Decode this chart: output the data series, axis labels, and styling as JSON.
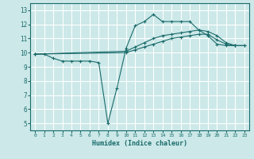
{
  "title": "",
  "xlabel": "Humidex (Indice chaleur)",
  "ylabel": "",
  "xlim": [
    -0.5,
    23.5
  ],
  "ylim": [
    4.5,
    13.5
  ],
  "xticks": [
    0,
    1,
    2,
    3,
    4,
    5,
    6,
    7,
    8,
    9,
    10,
    11,
    12,
    13,
    14,
    15,
    16,
    17,
    18,
    19,
    20,
    21,
    22,
    23
  ],
  "yticks": [
    5,
    6,
    7,
    8,
    9,
    10,
    11,
    12,
    13
  ],
  "bg_color": "#cce8e8",
  "grid_color": "#ffffff",
  "line_color": "#1a6b6b",
  "lines": [
    {
      "x": [
        0,
        1,
        2,
        3,
        4,
        5,
        6,
        7,
        8,
        9,
        10,
        11,
        12,
        13,
        14,
        15,
        16,
        17,
        18,
        19,
        20,
        21,
        22
      ],
      "y": [
        9.9,
        9.9,
        9.6,
        9.4,
        9.4,
        9.4,
        9.4,
        9.3,
        5.0,
        7.5,
        10.3,
        11.9,
        12.2,
        12.7,
        12.2,
        12.2,
        12.2,
        12.2,
        11.6,
        11.2,
        10.6,
        10.5,
        10.5
      ]
    },
    {
      "x": [
        0,
        10,
        11,
        12,
        13,
        14,
        15,
        16,
        17,
        18,
        19,
        20,
        21,
        22,
        23
      ],
      "y": [
        9.9,
        10.1,
        10.4,
        10.7,
        11.0,
        11.2,
        11.3,
        11.4,
        11.5,
        11.6,
        11.5,
        11.2,
        10.7,
        10.5,
        10.5
      ]
    },
    {
      "x": [
        0,
        10,
        11,
        12,
        13,
        14,
        15,
        16,
        17,
        18,
        19,
        20,
        21,
        22,
        23
      ],
      "y": [
        9.9,
        10.0,
        10.2,
        10.4,
        10.6,
        10.8,
        11.0,
        11.1,
        11.2,
        11.3,
        11.3,
        10.9,
        10.6,
        10.5,
        10.5
      ]
    }
  ]
}
